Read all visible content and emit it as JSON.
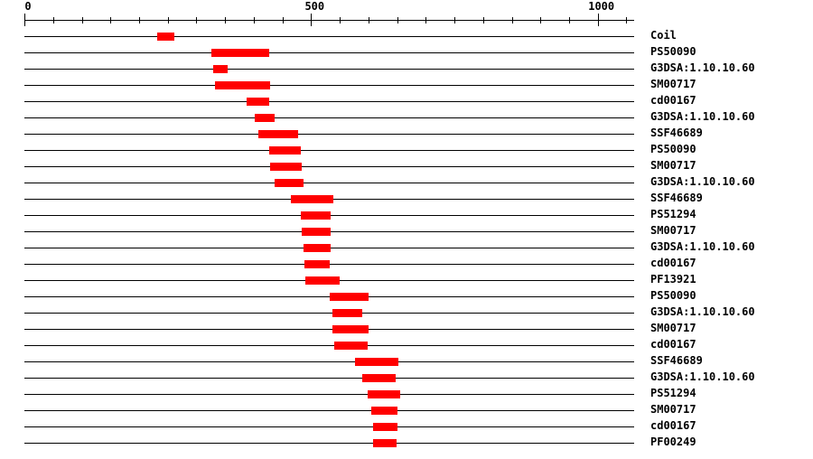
{
  "chart_data": {
    "type": "bar",
    "subtype": "protein-domain-architecture",
    "orientation": "horizontal",
    "title": "",
    "background": "#ffffff",
    "colors": {
      "bar": "#ff0000",
      "axis": "#000000",
      "text": "#000000"
    },
    "axis": {
      "position": "top",
      "min": 0,
      "max": 1063,
      "tick_interval": 50,
      "labeled_ticks": [
        {
          "value": 0,
          "label": "0"
        },
        {
          "value": 500,
          "label": "500"
        },
        {
          "value": 1000,
          "label": "1000"
        }
      ]
    },
    "legend": "none",
    "grid": "off",
    "rows": [
      {
        "label": "Coil",
        "start": 232,
        "end": 262
      },
      {
        "label": "PS50090",
        "start": 326,
        "end": 427
      },
      {
        "label": "G3DSA:1.10.10.60",
        "start": 329,
        "end": 355
      },
      {
        "label": "SM00717",
        "start": 332,
        "end": 429
      },
      {
        "label": "cd00167",
        "start": 388,
        "end": 427
      },
      {
        "label": "G3DSA:1.10.10.60",
        "start": 401,
        "end": 437
      },
      {
        "label": "SSF46689",
        "start": 408,
        "end": 477
      },
      {
        "label": "PS50090",
        "start": 427,
        "end": 482
      },
      {
        "label": "SM00717",
        "start": 429,
        "end": 484
      },
      {
        "label": "G3DSA:1.10.10.60",
        "start": 437,
        "end": 487
      },
      {
        "label": "SSF46689",
        "start": 464,
        "end": 538
      },
      {
        "label": "PS51294",
        "start": 482,
        "end": 535
      },
      {
        "label": "SM00717",
        "start": 484,
        "end": 534
      },
      {
        "label": "G3DSA:1.10.10.60",
        "start": 487,
        "end": 534
      },
      {
        "label": "cd00167",
        "start": 489,
        "end": 533
      },
      {
        "label": "PF13921",
        "start": 490,
        "end": 550
      },
      {
        "label": "PS50090",
        "start": 533,
        "end": 600
      },
      {
        "label": "G3DSA:1.10.10.60",
        "start": 537,
        "end": 589
      },
      {
        "label": "SM00717",
        "start": 538,
        "end": 601
      },
      {
        "label": "cd00167",
        "start": 540,
        "end": 599
      },
      {
        "label": "SSF46689",
        "start": 577,
        "end": 653
      },
      {
        "label": "G3DSA:1.10.10.60",
        "start": 589,
        "end": 648
      },
      {
        "label": "PS51294",
        "start": 598,
        "end": 656
      },
      {
        "label": "SM00717",
        "start": 605,
        "end": 651
      },
      {
        "label": "cd00167",
        "start": 608,
        "end": 650
      },
      {
        "label": "PF00249",
        "start": 608,
        "end": 649
      }
    ]
  }
}
